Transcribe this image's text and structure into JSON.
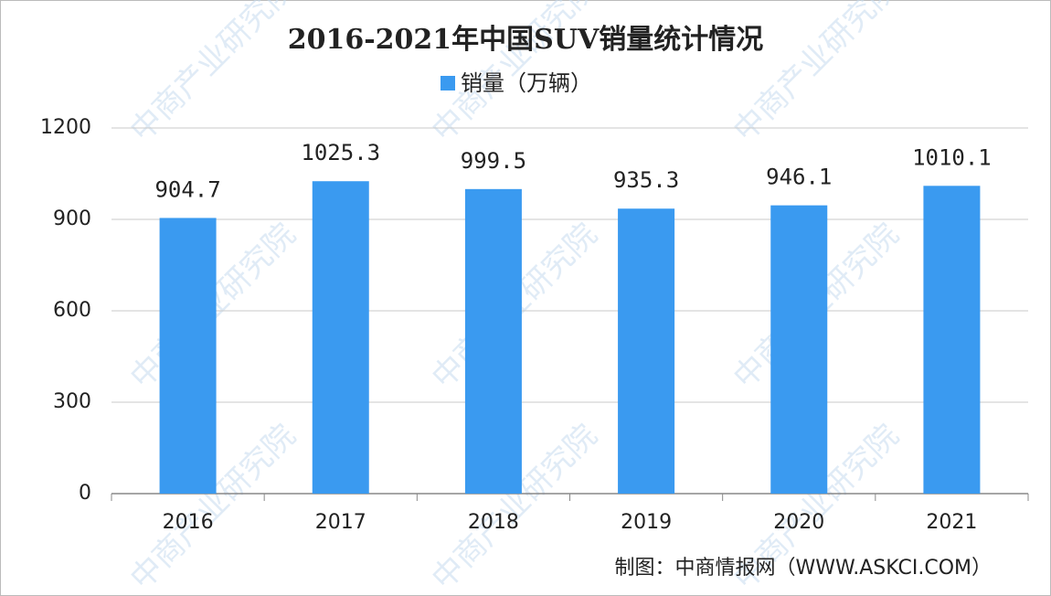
{
  "chart_data": {
    "type": "bar",
    "title": "2016-2021年中国SUV销量统计情况",
    "categories": [
      "2016",
      "2017",
      "2018",
      "2019",
      "2020",
      "2021"
    ],
    "series": [
      {
        "name": "销量（万辆）",
        "color": "#3a9af0",
        "values": [
          904.7,
          1025.3,
          999.5,
          935.3,
          946.1,
          1010.1
        ]
      }
    ],
    "ylim": [
      0,
      1200
    ],
    "yticks": [
      0,
      300,
      600,
      900,
      1200
    ],
    "grid": true,
    "legend": "top",
    "source": "制图：中商情报网（WWW.ASKCI.COM）",
    "watermark": "中商产业研究院"
  }
}
